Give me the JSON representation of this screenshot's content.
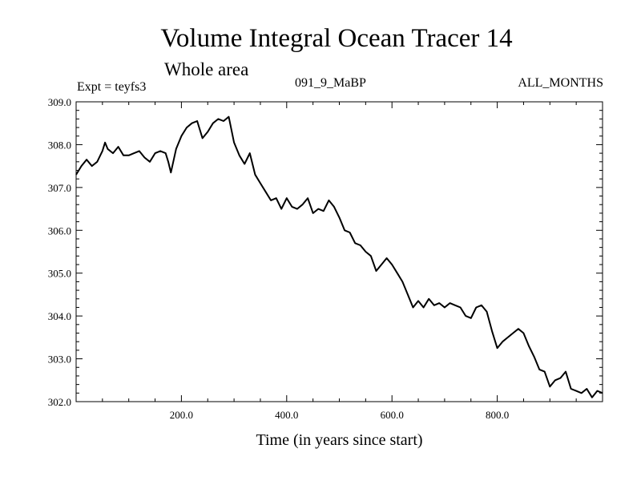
{
  "chart_data": {
    "type": "line",
    "title": "Volume Integral Ocean Tracer 14",
    "subtitle": "Whole area",
    "expt_label": "Expt = teyfs3",
    "run_label": "091_9_MaBP",
    "period_label": "ALL_MONTHS",
    "xlabel": "Time (in years since start)",
    "ylabel": "",
    "xlim": [
      0,
      1000
    ],
    "ylim": [
      302.0,
      309.0
    ],
    "x_ticks": [
      200,
      400,
      600,
      800
    ],
    "x_tick_labels": [
      "200.0",
      "400.0",
      "600.0",
      "800.0"
    ],
    "y_ticks": [
      302,
      303,
      304,
      305,
      306,
      307,
      308,
      309
    ],
    "y_tick_labels": [
      "302.0",
      "303.0",
      "304.0",
      "305.0",
      "306.0",
      "307.0",
      "308.0",
      "309.0"
    ],
    "series": [
      {
        "name": "Volume Integral Ocean Tracer 14",
        "color": "#000000",
        "x": [
          0,
          10,
          20,
          30,
          40,
          50,
          55,
          60,
          70,
          80,
          90,
          100,
          110,
          120,
          130,
          140,
          150,
          160,
          170,
          175,
          180,
          190,
          200,
          210,
          220,
          230,
          240,
          250,
          260,
          270,
          280,
          290,
          300,
          310,
          320,
          330,
          340,
          350,
          360,
          370,
          380,
          390,
          400,
          410,
          420,
          430,
          440,
          450,
          460,
          470,
          480,
          490,
          500,
          510,
          520,
          530,
          540,
          550,
          560,
          570,
          580,
          590,
          600,
          610,
          620,
          630,
          640,
          650,
          660,
          670,
          680,
          690,
          700,
          710,
          720,
          730,
          740,
          750,
          760,
          770,
          780,
          790,
          800,
          810,
          820,
          830,
          840,
          850,
          860,
          870,
          880,
          890,
          900,
          910,
          920,
          930,
          940,
          950,
          960,
          970,
          980,
          990,
          1000
        ],
        "values": [
          307.3,
          307.5,
          307.65,
          307.5,
          307.6,
          307.85,
          308.05,
          307.9,
          307.8,
          307.95,
          307.75,
          307.75,
          307.8,
          307.85,
          307.7,
          307.6,
          307.8,
          307.85,
          307.8,
          307.6,
          307.35,
          307.9,
          308.2,
          308.4,
          308.5,
          308.55,
          308.15,
          308.3,
          308.5,
          308.6,
          308.55,
          308.65,
          308.05,
          307.75,
          307.55,
          307.8,
          307.3,
          307.1,
          306.9,
          306.7,
          306.75,
          306.5,
          306.75,
          306.55,
          306.5,
          306.6,
          306.75,
          306.4,
          306.5,
          306.45,
          306.7,
          306.55,
          306.3,
          306.0,
          305.95,
          305.7,
          305.65,
          305.5,
          305.4,
          305.05,
          305.2,
          305.35,
          305.2,
          305.0,
          304.8,
          304.5,
          304.2,
          304.35,
          304.2,
          304.4,
          304.25,
          304.3,
          304.2,
          304.3,
          304.25,
          304.2,
          304.0,
          303.95,
          304.2,
          304.25,
          304.1,
          303.65,
          303.25,
          303.4,
          303.5,
          303.6,
          303.7,
          303.6,
          303.3,
          303.05,
          302.75,
          302.7,
          302.35,
          302.5,
          302.55,
          302.7,
          302.3,
          302.25,
          302.2,
          302.3,
          302.1,
          302.25,
          302.2
        ]
      }
    ]
  }
}
